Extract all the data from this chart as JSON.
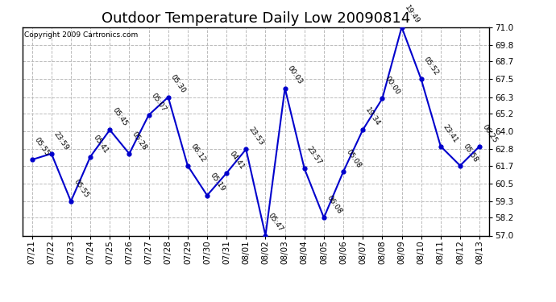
{
  "title": "Outdoor Temperature Daily Low 20090814",
  "copyright": "Copyright 2009 Cartronics.com",
  "background_color": "#ffffff",
  "plot_bg_color": "#ffffff",
  "line_color": "#0000cc",
  "marker_color": "#0000cc",
  "grid_color": "#bbbbbb",
  "x_labels": [
    "07/21",
    "07/22",
    "07/23",
    "07/24",
    "07/25",
    "07/26",
    "07/27",
    "07/28",
    "07/29",
    "07/30",
    "07/31",
    "08/01",
    "08/02",
    "08/03",
    "08/04",
    "08/05",
    "08/06",
    "08/07",
    "08/08",
    "08/09",
    "08/10",
    "08/11",
    "08/12",
    "08/13"
  ],
  "y_values": [
    62.1,
    62.5,
    59.3,
    62.3,
    64.1,
    62.5,
    65.1,
    66.3,
    61.7,
    59.7,
    61.2,
    62.8,
    57.0,
    66.9,
    61.5,
    58.2,
    61.3,
    64.1,
    66.2,
    71.0,
    67.5,
    63.0,
    61.7,
    63.0
  ],
  "point_labels": [
    "05:55",
    "23:59",
    "05:55",
    "05:41",
    "05:45",
    "05:28",
    "05:07",
    "05:30",
    "06:12",
    "05:19",
    "04:41",
    "23:53",
    "05:47",
    "00:03",
    "23:57",
    "06:08",
    "05:08",
    "19:34",
    "00:00",
    "19:49",
    "05:52",
    "23:41",
    "05:58",
    "06:25"
  ],
  "ylim": [
    57.0,
    71.0
  ],
  "yticks": [
    57.0,
    58.2,
    59.3,
    60.5,
    61.7,
    62.8,
    64.0,
    65.2,
    66.3,
    67.5,
    68.7,
    69.8,
    71.0
  ],
  "title_fontsize": 13,
  "tick_fontsize": 7.5,
  "label_fontsize": 6.5,
  "copyright_fontsize": 6.5,
  "fig_width": 6.9,
  "fig_height": 3.75,
  "dpi": 100
}
